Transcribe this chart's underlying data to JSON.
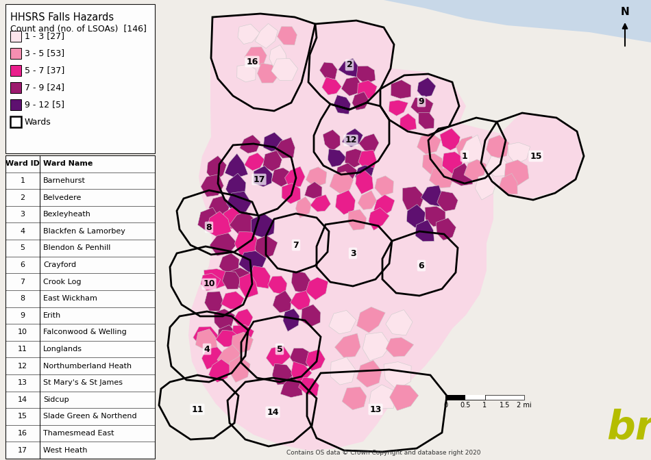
{
  "title_line1": "HHSRS Falls Hazards",
  "title_line2": "Count and (no. of LSOAs)  [146]",
  "legend_items": [
    {
      "label": "1 - 3 [27]",
      "color": "#fce4ec"
    },
    {
      "label": "3 - 5 [53]",
      "color": "#f48fb1"
    },
    {
      "label": "5 - 7 [37]",
      "color": "#e91e8c"
    },
    {
      "label": "7 - 9 [24]",
      "color": "#9c1a6e"
    },
    {
      "label": "9 - 12 [5]",
      "color": "#5e1070"
    }
  ],
  "wards_label": "Wards",
  "ward_table": [
    [
      "Ward ID",
      "Ward Name"
    ],
    [
      "1",
      "Barnehurst"
    ],
    [
      "2",
      "Belvedere"
    ],
    [
      "3",
      "Bexleyheath"
    ],
    [
      "4",
      "Blackfen & Lamorbey"
    ],
    [
      "5",
      "Blendon & Penhill"
    ],
    [
      "6",
      "Crayford"
    ],
    [
      "7",
      "Crook Log"
    ],
    [
      "8",
      "East Wickham"
    ],
    [
      "9",
      "Erith"
    ],
    [
      "10",
      "Falconwood & Welling"
    ],
    [
      "11",
      "Longlands"
    ],
    [
      "12",
      "Northumberland Heath"
    ],
    [
      "13",
      "St Mary's & St James"
    ],
    [
      "14",
      "Sidcup"
    ],
    [
      "15",
      "Slade Green & Northend"
    ],
    [
      "16",
      "Thamesmead East"
    ],
    [
      "17",
      "West Heath"
    ]
  ],
  "copyright_text": "Contains OS data © Crown Copyright and database right 2020",
  "bre_color": "#b5bd00",
  "bg_color": "#f0ede8",
  "map_area_color": "#eeeae3"
}
